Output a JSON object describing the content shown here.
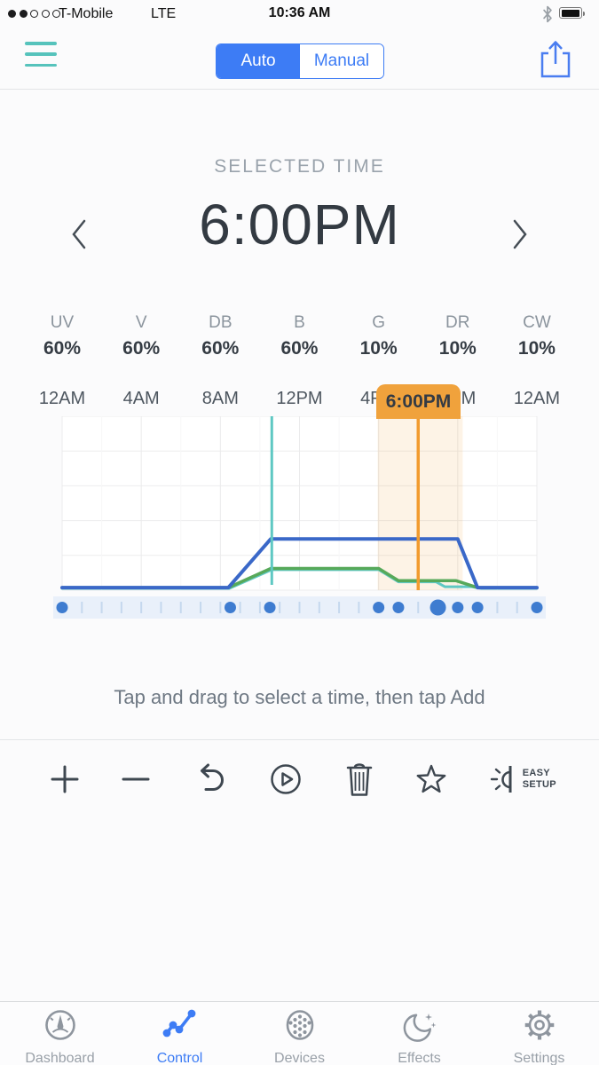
{
  "status_bar": {
    "carrier": "T-Mobile",
    "network": "LTE",
    "time": "10:36 AM",
    "signal_filled": 2,
    "signal_total": 5
  },
  "navbar": {
    "segments": [
      {
        "label": "Auto",
        "selected": true
      },
      {
        "label": "Manual",
        "selected": false
      }
    ]
  },
  "selected_time": {
    "heading": "SELECTED TIME",
    "value": "6:00PM"
  },
  "channels": [
    {
      "label": "UV",
      "value": "60%"
    },
    {
      "label": "V",
      "value": "60%"
    },
    {
      "label": "DB",
      "value": "60%"
    },
    {
      "label": "B",
      "value": "60%"
    },
    {
      "label": "G",
      "value": "10%"
    },
    {
      "label": "DR",
      "value": "10%"
    },
    {
      "label": "CW",
      "value": "10%"
    }
  ],
  "instruction": "Tap and drag to select a time, then tap Add",
  "toolbar": {
    "easy_setup_line1": "EASY",
    "easy_setup_line2": "SETUP"
  },
  "tabs": [
    {
      "label": "Dashboard",
      "active": false
    },
    {
      "label": "Control",
      "active": true
    },
    {
      "label": "Devices",
      "active": false
    },
    {
      "label": "Effects",
      "active": false
    },
    {
      "label": "Settings",
      "active": false
    }
  ],
  "chart_data": {
    "type": "line",
    "x_unit": "hour_of_day",
    "x_range": [
      0,
      24
    ],
    "tick_labels": [
      "12AM",
      "4AM",
      "8AM",
      "12PM",
      "4PM",
      "8PM",
      "12AM"
    ],
    "tick_hours": [
      0,
      4,
      8,
      12,
      16,
      20,
      24
    ],
    "ylim": [
      0,
      100
    ],
    "grid": true,
    "selected_time_hour": 18,
    "selected_time_label": "6:00PM",
    "current_time_hour": 10.6,
    "highlight_range": [
      15.95,
      20.25
    ],
    "series": [
      {
        "name": "teal-channel",
        "color": "#5fc8c3",
        "width": 3,
        "points": [
          [
            0,
            1
          ],
          [
            8.45,
            1
          ],
          [
            10.6,
            11.8
          ],
          [
            16,
            11.8
          ],
          [
            17,
            4.8
          ],
          [
            18.9,
            4.8
          ],
          [
            19.35,
            2
          ],
          [
            20.7,
            2
          ],
          [
            21.2,
            1
          ],
          [
            24,
            1
          ]
        ]
      },
      {
        "name": "green-channel",
        "color": "#57a95a",
        "width": 3.5,
        "points": [
          [
            0,
            1.5
          ],
          [
            8.4,
            1.5
          ],
          [
            10.55,
            12.5
          ],
          [
            16,
            12.5
          ],
          [
            17,
            5.5
          ],
          [
            19.9,
            5.5
          ],
          [
            21,
            1.5
          ],
          [
            24,
            1.5
          ]
        ]
      },
      {
        "name": "blue-channel",
        "color": "#3a68c8",
        "width": 4,
        "points": [
          [
            0,
            1.5
          ],
          [
            8.4,
            1.5
          ],
          [
            10.55,
            29.5
          ],
          [
            20,
            29.5
          ],
          [
            21,
            1.5
          ],
          [
            24,
            1.5
          ]
        ]
      }
    ],
    "keyframe_dots": {
      "hours": [
        0,
        8.5,
        10.5,
        16,
        17,
        19,
        20,
        21,
        24
      ],
      "large_hour": 19
    },
    "colors": {
      "highlight": "rgba(243,162,60,0.13)",
      "selected_line": "#f29b2e",
      "current_line": "#5fc8c3",
      "band_bg": "#e9f0fa",
      "band_tick": "#c5d8ee",
      "dot": "#3e7cd0",
      "grid_major": "#ebebec",
      "grid_minor": "#f7f7f8",
      "grid_h": "#ededee"
    }
  }
}
